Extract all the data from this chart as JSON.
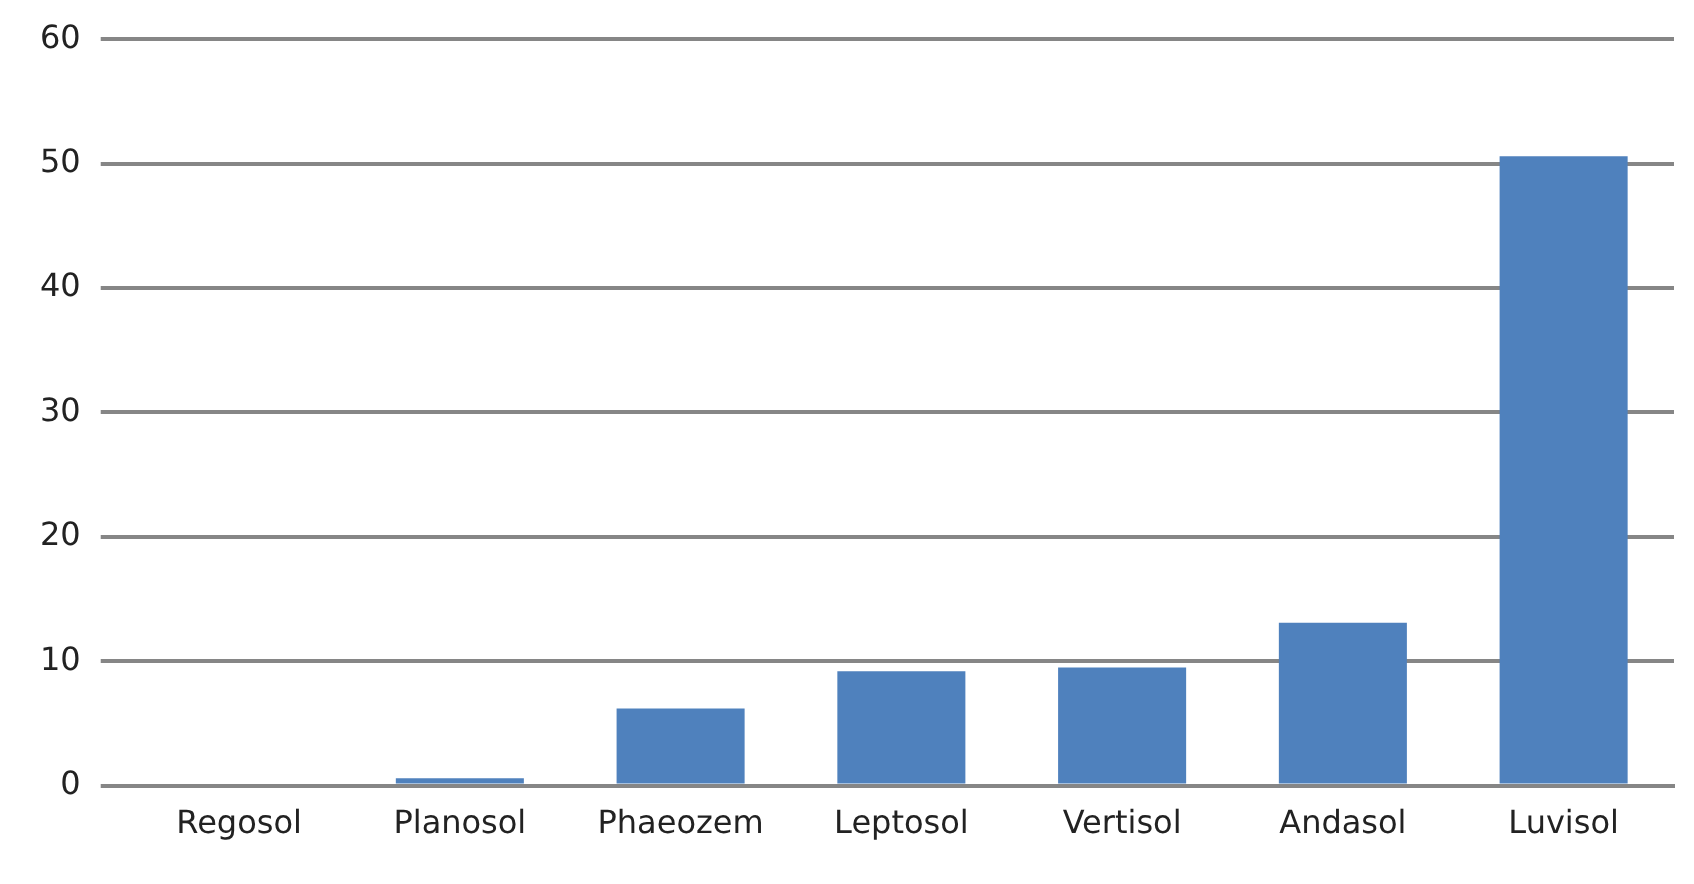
{
  "chart_data": {
    "type": "bar",
    "categories": [
      "Regosol",
      "Planosol",
      "Phaeozem",
      "Leptosol",
      "Vertisol",
      "Andasol",
      "Luvisol"
    ],
    "values": [
      0,
      0.6,
      6.2,
      9.2,
      9.5,
      13.1,
      50.6
    ],
    "color": "#4f81bd",
    "ylim": [
      0,
      60
    ],
    "yticks": [
      0,
      10,
      20,
      30,
      40,
      50,
      60
    ],
    "grid": "y"
  }
}
